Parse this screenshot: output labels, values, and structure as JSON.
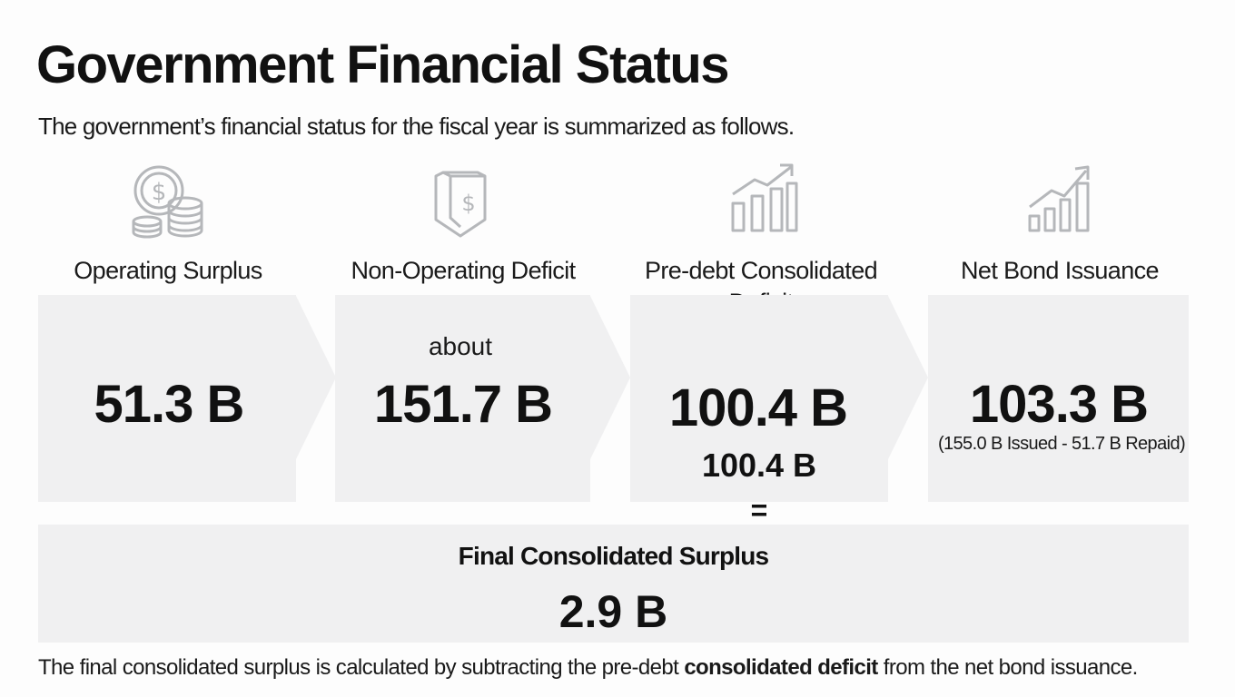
{
  "title": "Government Financial Status",
  "subtitle": "The government’s financial status for the fiscal year is summarized as follows.",
  "columns": [
    {
      "icon": "coins-icon",
      "label": "Operating Surplus",
      "prefix": "",
      "value": "51.3 B",
      "detail": ""
    },
    {
      "icon": "money-bag-icon",
      "label": "Non-Operating Deficit",
      "prefix": "about",
      "value": "151.7 B",
      "detail": ""
    },
    {
      "icon": "growth-chart-icon",
      "label": "Pre-debt Consolidated Deficit",
      "prefix": "",
      "value": "100.4 B",
      "detail": "100.4 B"
    },
    {
      "icon": "growth-chart-icon",
      "label": "Net Bond Issuance",
      "prefix": "",
      "value": "103.3 B",
      "detail": "(155.0 B Issued - 51.7 B Repaid)"
    }
  ],
  "equals_sign": "=",
  "final": {
    "label": "Final Consolidated Surplus",
    "value": "2.9 B"
  },
  "footnote": {
    "before": "The final consolidated surplus is calculated by subtracting the pre-debt ",
    "bold": "consolidated deficit",
    "after": " from the net bond issuance."
  },
  "colors": {
    "panel": "#f0f0f1",
    "icon": "#b5b7ba",
    "text": "#111111"
  }
}
